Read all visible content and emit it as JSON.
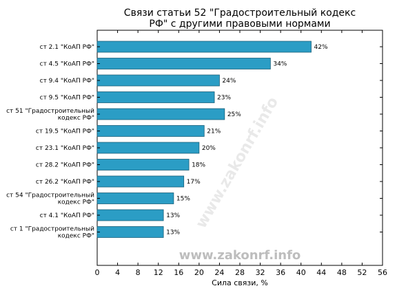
{
  "chart_data": {
    "type": "bar",
    "orientation": "horizontal",
    "title_lines": [
      "Связи статьи 52 \"Градостроительный кодекс",
      "РФ\" с другими правовыми нормами"
    ],
    "xlabel": "Сила связи, %",
    "ylabel": "",
    "xlim": [
      0,
      56
    ],
    "xticks": [
      0,
      4,
      8,
      12,
      16,
      20,
      24,
      28,
      32,
      36,
      40,
      44,
      48,
      52,
      56
    ],
    "grid": false,
    "bar_color": "#2b9dc5",
    "bar_edge_color": "#1a5f78",
    "categories": [
      [
        "ст 2.1 \"КоАП РФ\""
      ],
      [
        "ст 4.5 \"КоАП РФ\""
      ],
      [
        "ст 9.4 \"КоАП РФ\""
      ],
      [
        "ст 9.5 \"КоАП РФ\""
      ],
      [
        "ст 51 \"Градостроительный",
        "кодекс РФ\""
      ],
      [
        "ст 19.5 \"КоАП РФ\""
      ],
      [
        "ст 23.1 \"КоАП РФ\""
      ],
      [
        "ст 28.2 \"КоАП РФ\""
      ],
      [
        "ст 26.2 \"КоАП РФ\""
      ],
      [
        "ст 54 \"Градостроительный",
        "кодекс РФ\""
      ],
      [
        "ст 4.1 \"КоАП РФ\""
      ],
      [
        "ст 1 \"Градостроительный",
        "кодекс РФ\""
      ]
    ],
    "values": [
      42,
      34,
      24,
      23,
      25,
      21,
      20,
      18,
      17,
      15,
      13,
      13
    ],
    "labels": [
      "42%",
      "34%",
      "24%",
      "23%",
      "25%",
      "21%",
      "20%",
      "18%",
      "17%",
      "15%",
      "13%",
      "13%"
    ]
  },
  "watermark": "www.zakonrf.info"
}
